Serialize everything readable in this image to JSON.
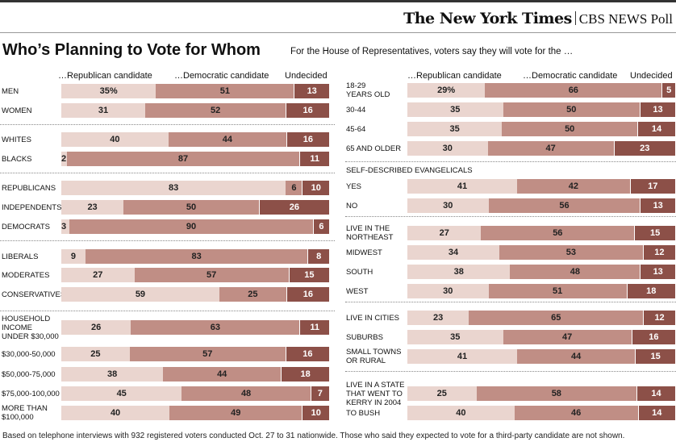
{
  "brand": {
    "newspaper": "The New York Times",
    "poll": "CBS NEWS Poll"
  },
  "title": "Who’s Planning to Vote for Whom",
  "subtitle": "For the House of Representatives, voters say they will vote for the …",
  "column_headers": {
    "rep": "…Republican candidate",
    "dem": "…Democratic candidate",
    "und": "Undecided"
  },
  "colors": {
    "republican": "#ead5cf",
    "democratic": "#c08e85",
    "undecided": "#8c5048"
  },
  "footnote": "Based on telephone interviews with 932 registered voters conducted Oct. 27 to 31 nationwide. Those who said they expected to vote for a third-party candidate are not shown.",
  "chart_data": [
    {
      "type": "bar",
      "stacked": true,
      "orientation": "horizontal",
      "series_names": [
        "…Republican candidate",
        "…Democratic candidate",
        "Undecided"
      ],
      "groups": [
        {
          "rows": [
            {
              "label": "MEN",
              "values": [
                35,
                51,
                13
              ],
              "display": [
                "35%",
                "51",
                "13"
              ]
            },
            {
              "label": "WOMEN",
              "values": [
                31,
                52,
                16
              ]
            }
          ]
        },
        {
          "rows": [
            {
              "label": "WHITES",
              "values": [
                40,
                44,
                16
              ]
            },
            {
              "label": "BLACKS",
              "values": [
                2,
                87,
                11
              ]
            }
          ]
        },
        {
          "rows": [
            {
              "label": "REPUBLICANS",
              "values": [
                83,
                6,
                10
              ]
            },
            {
              "label": "INDEPENDENTS",
              "values": [
                23,
                50,
                26
              ]
            },
            {
              "label": "DEMOCRATS",
              "values": [
                3,
                90,
                6
              ]
            }
          ]
        },
        {
          "rows": [
            {
              "label": "LIBERALS",
              "values": [
                9,
                83,
                8
              ]
            },
            {
              "label": "MODERATES",
              "values": [
                27,
                57,
                15
              ]
            },
            {
              "label": "CONSERVATIVES",
              "values": [
                59,
                25,
                16
              ]
            }
          ]
        },
        {
          "rows": [
            {
              "label": "HOUSEHOLD\nINCOME\nUNDER $30,000",
              "values": [
                26,
                63,
                11
              ]
            },
            {
              "label": "$30,000-50,000",
              "values": [
                25,
                57,
                16
              ]
            },
            {
              "label": "$50,000-75,000",
              "values": [
                38,
                44,
                18
              ]
            },
            {
              "label": "$75,000-100,000",
              "values": [
                45,
                48,
                7
              ]
            },
            {
              "label": "MORE THAN\n$100,000",
              "values": [
                40,
                49,
                10
              ]
            }
          ]
        }
      ]
    },
    {
      "type": "bar",
      "stacked": true,
      "orientation": "horizontal",
      "series_names": [
        "…Republican candidate",
        "…Democratic candidate",
        "Undecided"
      ],
      "groups": [
        {
          "rows": [
            {
              "label": "18-29\nYEARS OLD",
              "values": [
                29,
                66,
                5
              ],
              "display": [
                "29%",
                "66",
                "5"
              ]
            },
            {
              "label": "30-44",
              "values": [
                35,
                50,
                13
              ]
            },
            {
              "label": "45-64",
              "values": [
                35,
                50,
                14
              ]
            },
            {
              "label": "65 AND OLDER",
              "values": [
                30,
                47,
                23
              ]
            }
          ]
        },
        {
          "heading": "SELF-DESCRIBED EVANGELICALS",
          "rows": [
            {
              "label": "YES",
              "values": [
                41,
                42,
                17
              ]
            },
            {
              "label": "NO",
              "values": [
                30,
                56,
                13
              ]
            }
          ]
        },
        {
          "rows": [
            {
              "label": "LIVE IN THE\nNORTHEAST",
              "values": [
                27,
                56,
                15
              ]
            },
            {
              "label": "MIDWEST",
              "values": [
                34,
                53,
                12
              ]
            },
            {
              "label": "SOUTH",
              "values": [
                38,
                48,
                13
              ]
            },
            {
              "label": "WEST",
              "values": [
                30,
                51,
                18
              ]
            }
          ]
        },
        {
          "rows": [
            {
              "label": "LIVE IN CITIES",
              "values": [
                23,
                65,
                12
              ]
            },
            {
              "label": "SUBURBS",
              "values": [
                35,
                47,
                16
              ]
            },
            {
              "label": "SMALL TOWNS\nOR RURAL",
              "values": [
                41,
                44,
                15
              ]
            }
          ]
        },
        {
          "rows": [
            {
              "label": "LIVE IN A STATE\nTHAT WENT TO\nKERRY IN 2004",
              "values": [
                25,
                58,
                14
              ]
            },
            {
              "label": "TO BUSH",
              "values": [
                40,
                46,
                14
              ]
            }
          ]
        }
      ]
    }
  ]
}
